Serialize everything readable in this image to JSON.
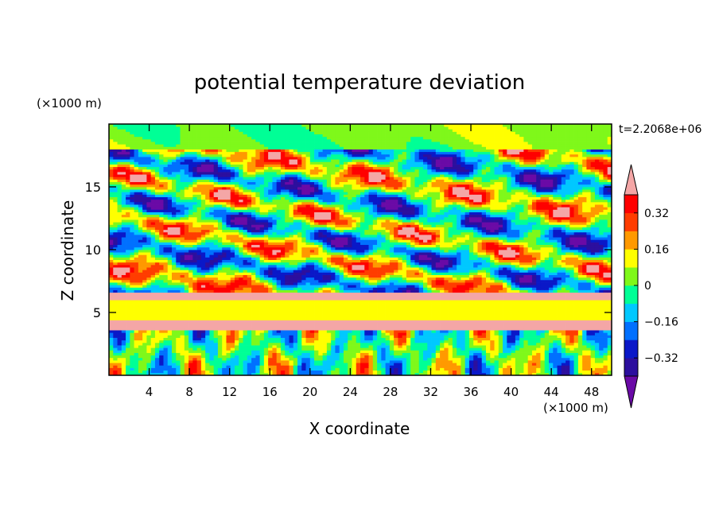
{
  "chart_data": {
    "type": "heatmap",
    "title": "potential temperature deviation",
    "xlabel": "X coordinate",
    "ylabel": "Z coordinate",
    "x_unit": "(×1000 m)",
    "y_unit": "(×1000 m)",
    "time_label": "t=2.2068e+06",
    "xlim": [
      0,
      50
    ],
    "ylim": [
      0,
      20
    ],
    "x_ticks": [
      4,
      8,
      12,
      16,
      20,
      24,
      28,
      32,
      36,
      40,
      44,
      48
    ],
    "x_tick_labels": [
      "4",
      "8",
      "12",
      "16",
      "20",
      "24",
      "28",
      "32",
      "36",
      "40",
      "44",
      "48"
    ],
    "y_ticks": [
      5,
      10,
      15
    ],
    "y_tick_labels": [
      "5",
      "10",
      "15"
    ],
    "colorbar": {
      "levels": [
        -0.4,
        -0.32,
        -0.24,
        -0.16,
        -0.08,
        0,
        0.08,
        0.16,
        0.24,
        0.32,
        0.4
      ],
      "tick_values": [
        0.32,
        0.16,
        0,
        -0.16,
        -0.32
      ],
      "tick_labels": [
        "0.32",
        "0.16",
        "0",
        "−0.16",
        "−0.32"
      ],
      "colors": [
        "#6a0aa6",
        "#2c0f9e",
        "#0a18c8",
        "#0070ff",
        "#00c8ff",
        "#00ff96",
        "#7ff81a",
        "#ffff00",
        "#ff9900",
        "#ff3c00",
        "#ff0000",
        "#f4a6a6"
      ]
    }
  }
}
